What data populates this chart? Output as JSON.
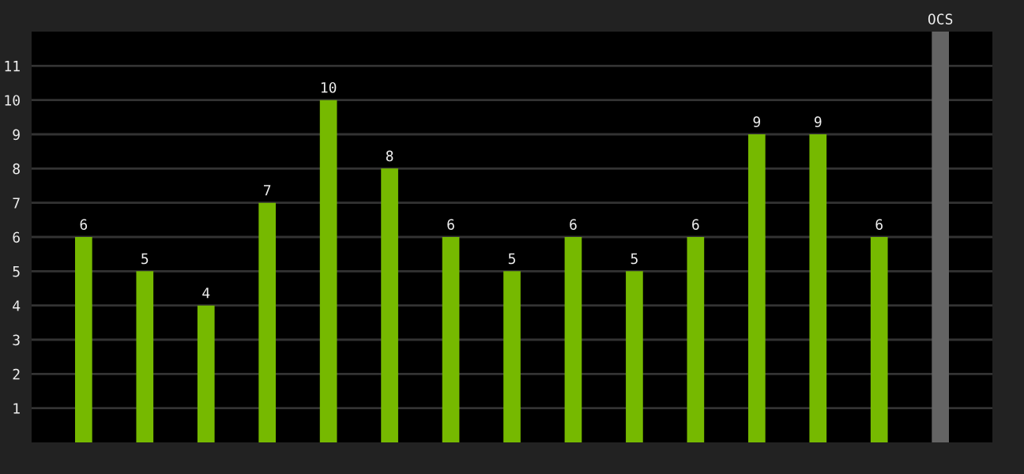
{
  "chart_data": {
    "type": "bar",
    "categories": [
      null,
      null,
      null,
      null,
      null,
      null,
      null,
      null,
      null,
      null,
      null,
      null,
      null,
      null,
      null
    ],
    "values": [
      6,
      5,
      4,
      7,
      10,
      8,
      6,
      5,
      6,
      5,
      6,
      9,
      9,
      6,
      12
    ],
    "colors": [
      "#76b900",
      "#76b900",
      "#76b900",
      "#76b900",
      "#76b900",
      "#76b900",
      "#76b900",
      "#76b900",
      "#76b900",
      "#76b900",
      "#76b900",
      "#76b900",
      "#76b900",
      "#76b900",
      "#646464"
    ],
    "value_labels": [
      "6",
      "5",
      "4",
      "7",
      "10",
      "8",
      "6",
      "5",
      "6",
      "5",
      "6",
      "9",
      "9",
      "6",
      "OCS"
    ],
    "ylim": [
      0,
      12
    ],
    "yticks": [
      1,
      2,
      3,
      4,
      5,
      6,
      7,
      8,
      9,
      10,
      11
    ],
    "grid": "y",
    "tick_labels": "y",
    "legend": false
  }
}
